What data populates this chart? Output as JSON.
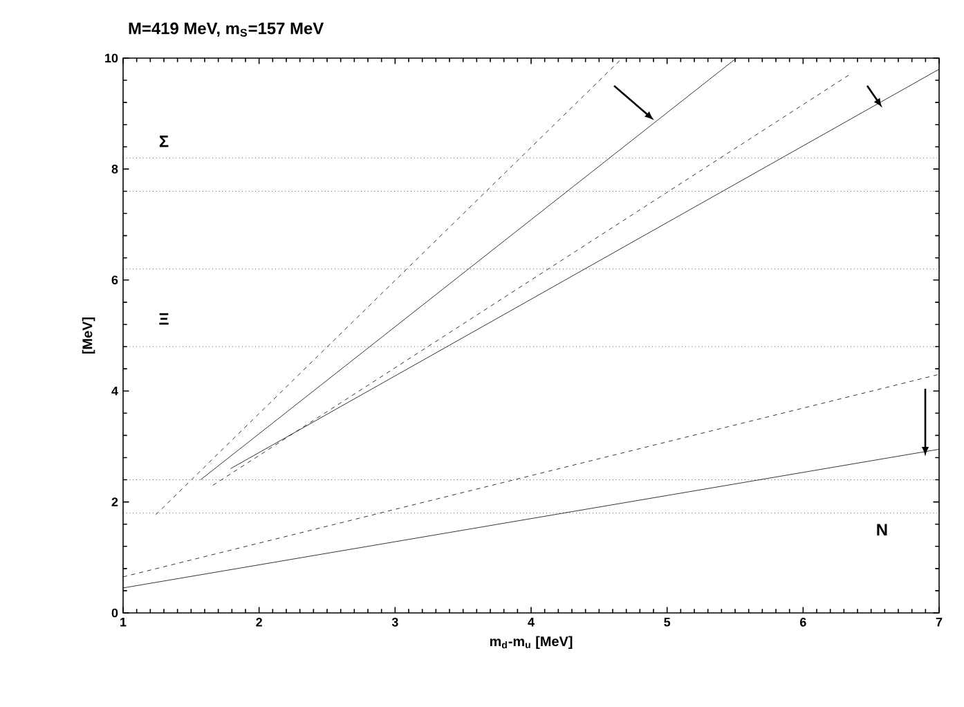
{
  "chart_data": {
    "type": "line",
    "title": "M=419 MeV, m$_{S}$=157 MeV",
    "xlabel": "m$_{d}$-m$_{u}$ [MeV]",
    "ylabel": "[MeV]",
    "xlim": [
      1,
      7
    ],
    "ylim": [
      0,
      10
    ],
    "xticks": [
      1,
      2,
      3,
      4,
      5,
      6,
      7
    ],
    "yticks": [
      0,
      2,
      4,
      6,
      8,
      10
    ],
    "grid": false,
    "marker": "none",
    "series": [
      {
        "color": "#000000",
        "line_style": "solid",
        "x": [
          1,
          7
        ],
        "values": [
          0.45,
          2.95
        ]
      },
      {
        "color": "#000000",
        "line_style": "dashed",
        "x": [
          1,
          7
        ],
        "values": [
          0.65,
          4.3
        ]
      },
      {
        "color": "#000000",
        "line_style": "dashed",
        "x": [
          1.24,
          4.67
        ],
        "values": [
          1.77,
          10
        ]
      },
      {
        "color": "#000000",
        "line_style": "solid",
        "x": [
          1.57,
          5.51
        ],
        "values": [
          2.4,
          10
        ]
      },
      {
        "color": "#000000",
        "line_style": "dashed",
        "x": [
          1.66,
          6.34
        ],
        "values": [
          2.3,
          9.7
        ]
      },
      {
        "color": "#000000",
        "line_style": "solid",
        "x": [
          1.79,
          7
        ],
        "values": [
          2.6,
          9.8
        ]
      }
    ],
    "ref_lines": [
      {
        "axis": "y",
        "value": 8.2,
        "line_style": "dotted"
      },
      {
        "axis": "y",
        "value": 7.6,
        "line_style": "dotted"
      },
      {
        "axis": "y",
        "value": 6.2,
        "line_style": "dotted"
      },
      {
        "axis": "y",
        "value": 4.8,
        "line_style": "dotted"
      },
      {
        "axis": "y",
        "value": 2.4,
        "line_style": "dotted"
      },
      {
        "axis": "y",
        "value": 1.8,
        "line_style": "dotted"
      }
    ],
    "annotations": [
      "Σ",
      "Ξ",
      "N"
    ]
  }
}
